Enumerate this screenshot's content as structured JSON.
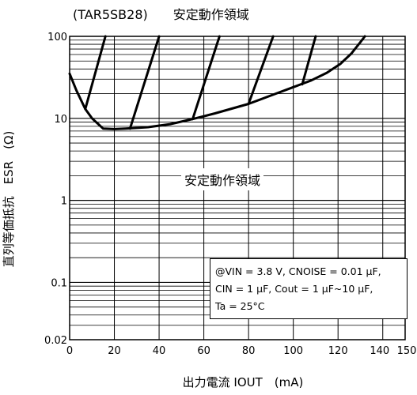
{
  "chart_data": {
    "type": "line",
    "title": "(TAR5SB28)　　安定動作領域",
    "xlabel": "出力電流 IOUT　(mA)",
    "ylabel": "直列等価抵抗　ESR　(Ω)",
    "x_ticks": [
      "0",
      "20",
      "40",
      "60",
      "80",
      "100",
      "120",
      "140",
      "150"
    ],
    "y_ticks": [
      "0.02",
      "0.1",
      "1",
      "10",
      "100"
    ],
    "xlim": [
      0,
      150
    ],
    "ylim": [
      0.02,
      100
    ],
    "y_scale": "log",
    "grid": true,
    "region_label": "安定動作領域",
    "condition_lines": [
      "@VIN = 3.8 V, CNOISE = 0.01 μF,",
      "CIN = 1 μF, Cout = 1 μF~10 μF,",
      "Ta = 25°C"
    ],
    "series": [
      {
        "values_xy": [
          [
            0,
            35
          ],
          [
            3,
            22
          ],
          [
            7,
            13
          ],
          [
            10,
            10
          ],
          [
            15,
            7.5
          ],
          [
            20,
            7.4
          ],
          [
            25,
            7.5
          ],
          [
            35,
            7.8
          ],
          [
            45,
            8.5
          ],
          [
            55,
            9.8
          ],
          [
            65,
            11.5
          ],
          [
            80,
            15
          ],
          [
            90,
            19
          ],
          [
            100,
            24
          ],
          [
            108,
            29
          ],
          [
            115,
            36
          ],
          [
            121,
            46
          ],
          [
            126,
            62
          ],
          [
            130,
            85
          ],
          [
            132,
            100
          ]
        ]
      },
      {
        "values_xy": [
          [
            7,
            13
          ],
          [
            16,
            100
          ]
        ]
      },
      {
        "values_xy": [
          [
            27,
            7.5
          ],
          [
            40,
            100
          ]
        ]
      },
      {
        "values_xy": [
          [
            55,
            9.8
          ],
          [
            67,
            100
          ]
        ]
      },
      {
        "values_xy": [
          [
            80,
            15
          ],
          [
            91,
            100
          ]
        ]
      },
      {
        "values_xy": [
          [
            104,
            26
          ],
          [
            110,
            100
          ]
        ]
      }
    ]
  }
}
